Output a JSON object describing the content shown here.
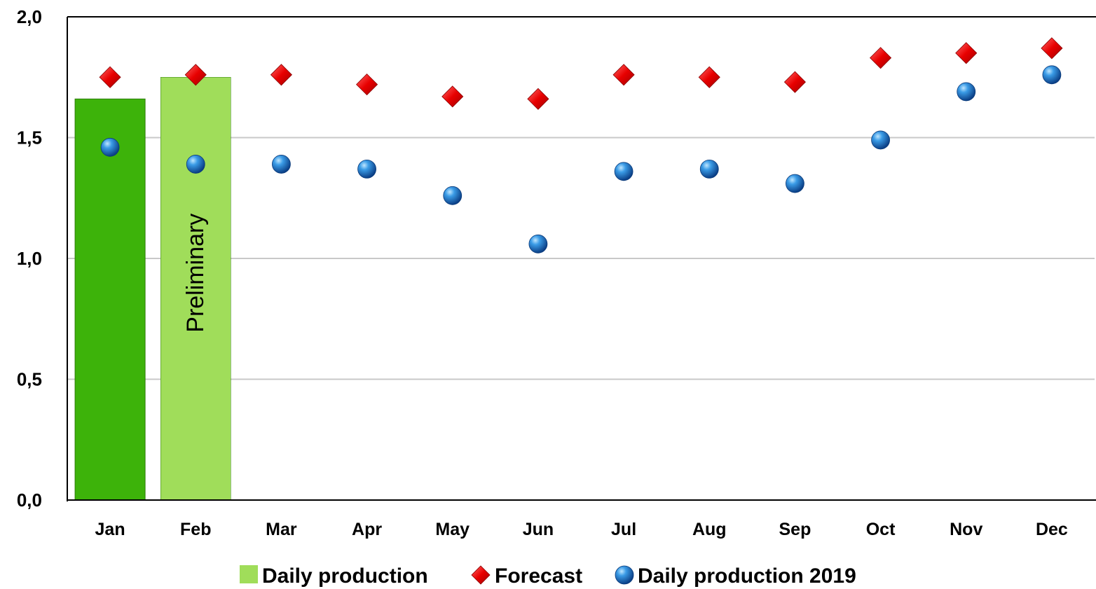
{
  "chart_data": {
    "type": "bar",
    "categories": [
      "Jan",
      "Feb",
      "Mar",
      "Apr",
      "May",
      "Jun",
      "Jul",
      "Aug",
      "Sep",
      "Oct",
      "Nov",
      "Dec"
    ],
    "ylim": [
      0,
      2.0
    ],
    "yticks": [
      "0,0",
      "0,5",
      "1,0",
      "1,5",
      "2,0"
    ],
    "grid": true,
    "legend_position": "bottom",
    "bar_annotation": "Preliminary",
    "series": [
      {
        "name": "Daily production",
        "type": "bar",
        "color": "#3db30a",
        "preliminary_color": "#a0dd5a",
        "values": [
          1.66,
          1.75,
          null,
          null,
          null,
          null,
          null,
          null,
          null,
          null,
          null,
          null
        ]
      },
      {
        "name": "Forecast",
        "type": "scatter",
        "marker": "diamond",
        "color": "#e30000",
        "values": [
          1.75,
          1.76,
          1.76,
          1.72,
          1.67,
          1.66,
          1.76,
          1.75,
          1.73,
          1.83,
          1.85,
          1.87
        ]
      },
      {
        "name": "Daily production 2019",
        "type": "scatter",
        "marker": "circle",
        "color": "#1a78c8",
        "values": [
          1.46,
          1.39,
          1.39,
          1.37,
          1.26,
          1.06,
          1.36,
          1.37,
          1.31,
          1.49,
          1.69,
          1.76
        ]
      }
    ]
  }
}
